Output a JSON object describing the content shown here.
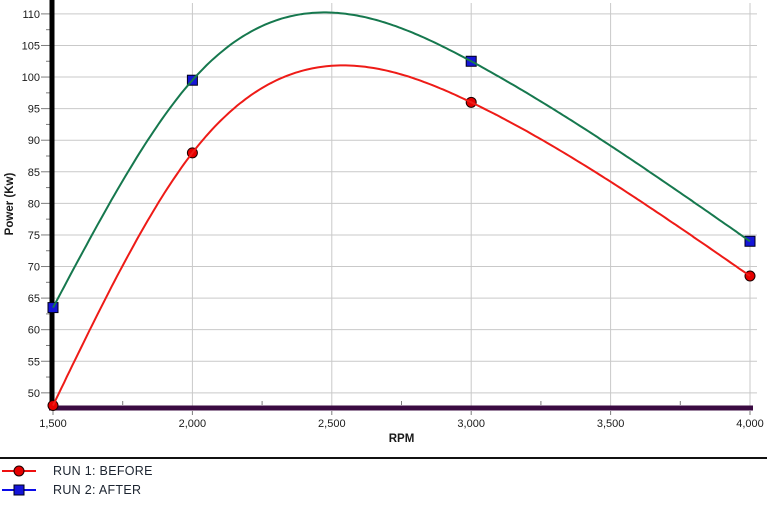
{
  "chart_data": {
    "type": "line",
    "x": [
      1500,
      2000,
      3000,
      4000
    ],
    "series": [
      {
        "name": "RUN 1: BEFORE",
        "values": [
          48,
          88,
          96,
          68.5
        ],
        "line_color": "#ee1b17",
        "marker": "circle",
        "marker_fill": "#e60000",
        "marker_stroke": "#1a0000",
        "legend_line_color": "#ee1010"
      },
      {
        "name": "RUN 2: AFTER",
        "values": [
          63.5,
          99.5,
          102.5,
          74
        ],
        "line_color": "#16784e",
        "marker": "square",
        "marker_fill": "#1515d8",
        "marker_stroke": "#00001a",
        "legend_line_color": "#0b0be8"
      }
    ],
    "interpolation": "natural-cubic-spline",
    "curve_peaks": [
      {
        "series": "RUN 1: BEFORE",
        "x": 2550,
        "y": 102
      },
      {
        "series": "RUN 2: AFTER",
        "x": 2450,
        "y": 110
      }
    ],
    "title": "",
    "xlabel": "RPM",
    "ylabel": "Power (Kw)",
    "xlim": [
      1500,
      4000
    ],
    "ylim": [
      47.6,
      112.2
    ],
    "x_tick_labels": [
      "1,500",
      "2,000",
      "2,500",
      "3,000",
      "3,500",
      "4,000"
    ],
    "x_tick_values": [
      1500,
      2000,
      2500,
      3000,
      3500,
      4000
    ],
    "x_minor_tick_values": [
      1750,
      2250,
      2750,
      3250,
      3750
    ],
    "y_tick_labels": [
      "110",
      "105",
      "100",
      "95",
      "90",
      "85",
      "80",
      "75",
      "70",
      "65",
      "60",
      "55",
      "50"
    ],
    "y_tick_values": [
      110,
      105,
      100,
      95,
      90,
      85,
      80,
      75,
      70,
      65,
      60,
      55,
      50
    ],
    "grid": true,
    "legend_position": "bottom-left"
  },
  "colors": {
    "background": "#ffffff",
    "grid": "#c9c9c9",
    "y_axis": "#000000",
    "x_axis": "#3b0b42",
    "tick": "#7d7d7d",
    "tick_label": "#1a1a1a",
    "legend_text": "#1c2430",
    "separator": "#111111"
  },
  "legend": {
    "items": [
      {
        "label": "RUN 1: BEFORE"
      },
      {
        "label": "RUN 2: AFTER"
      }
    ]
  }
}
